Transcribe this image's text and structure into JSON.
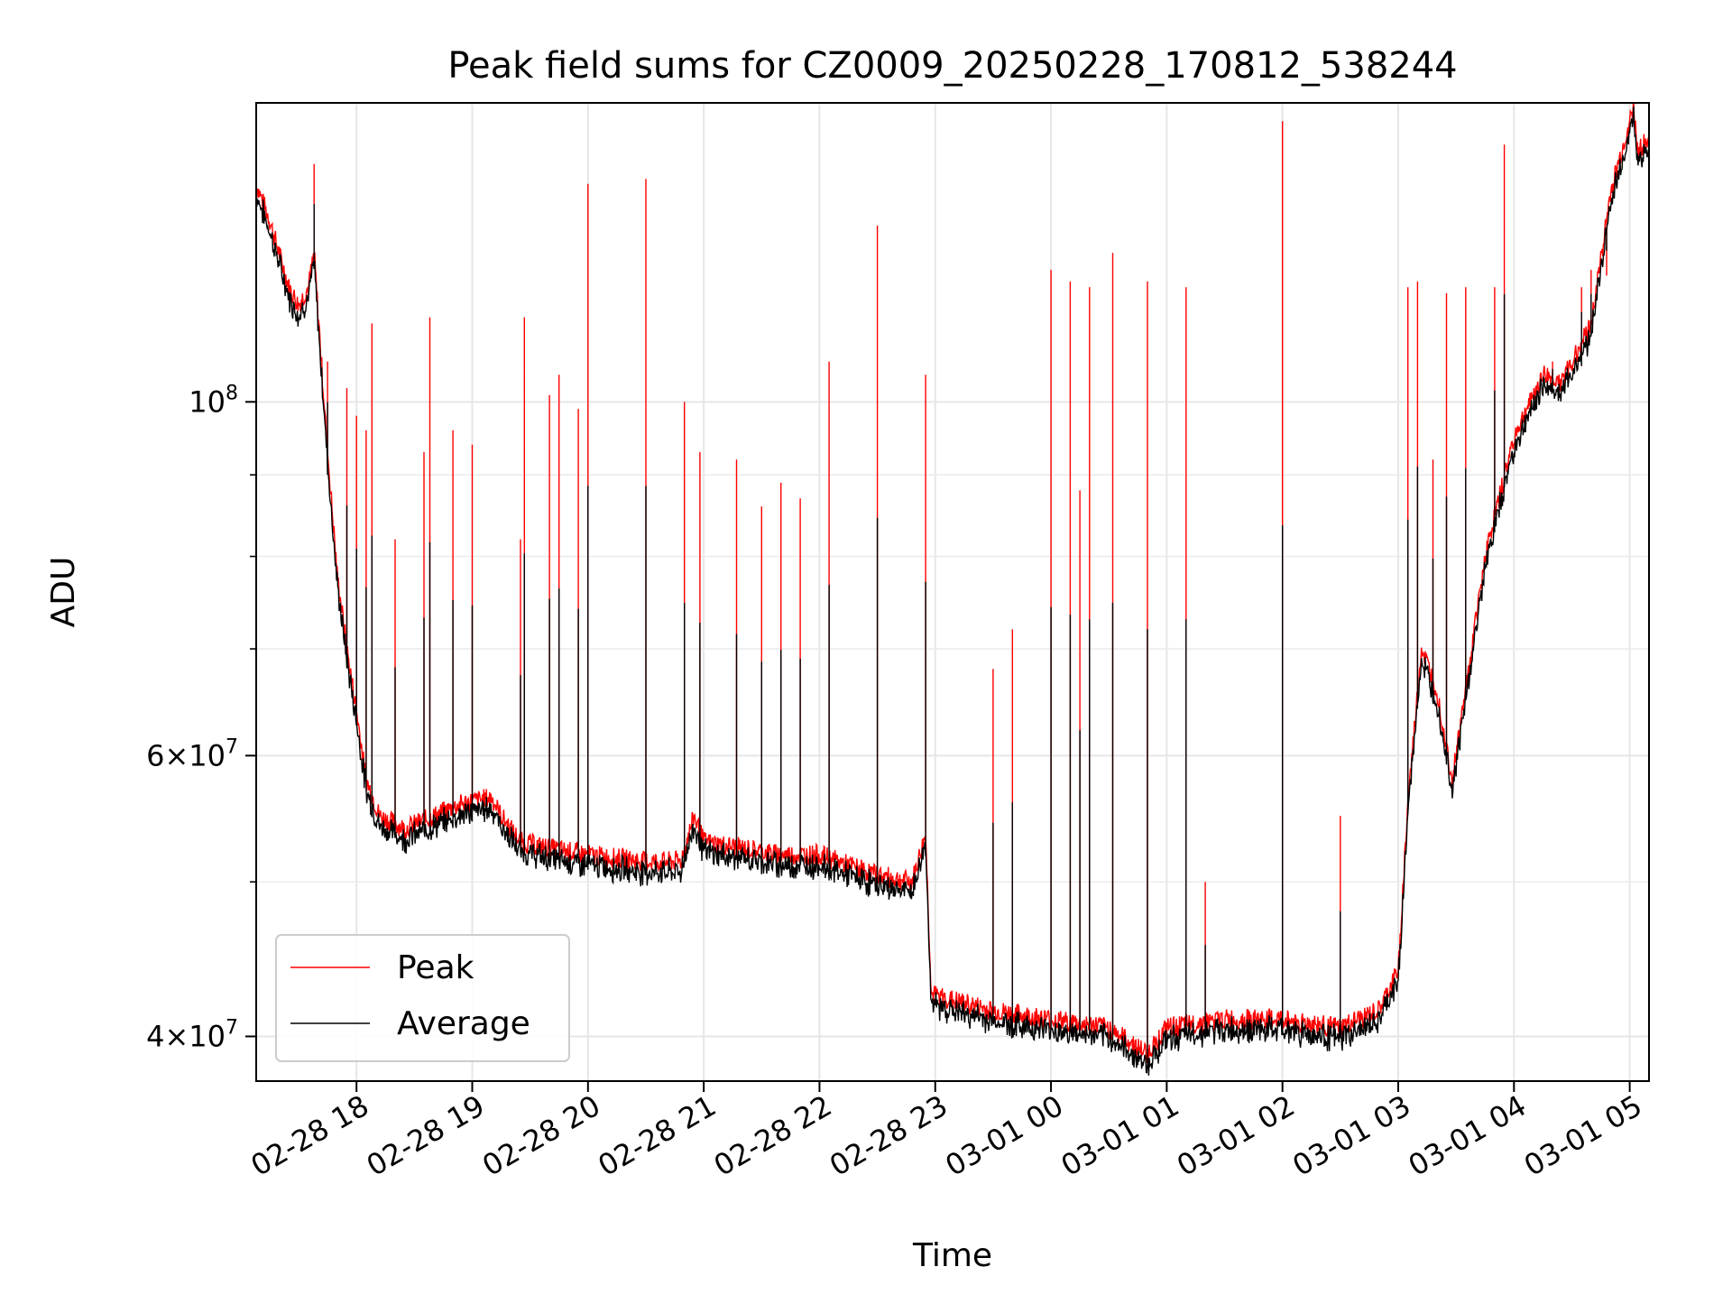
{
  "chart_data": {
    "type": "line",
    "title": "Peak field sums for CZ0009_20250228_170812_538244",
    "xlabel": "Time",
    "ylabel": "ADU",
    "y_scale": "log",
    "ylim": [
      37500000,
      154000000
    ],
    "x_axis": {
      "type": "datetime",
      "range": [
        "2025-02-28 17:08",
        "2025-03-01 05:10"
      ],
      "ticks": [
        "2025-02-28 18:00",
        "2025-02-28 19:00",
        "2025-02-28 20:00",
        "2025-02-28 21:00",
        "2025-02-28 22:00",
        "2025-02-28 23:00",
        "2025-03-01 00:00",
        "2025-03-01 01:00",
        "2025-03-01 02:00",
        "2025-03-01 03:00",
        "2025-03-01 04:00",
        "2025-03-01 05:00"
      ],
      "tick_labels": [
        "02-28 18",
        "02-28 19",
        "02-28 20",
        "02-28 21",
        "02-28 22",
        "02-28 23",
        "03-01 00",
        "03-01 01",
        "03-01 02",
        "03-01 03",
        "03-01 04",
        "03-01 05"
      ]
    },
    "y_axis": {
      "major_ticks": [
        {
          "value": 40000000,
          "mantissa": "4",
          "exponent": "7"
        },
        {
          "value": 60000000,
          "mantissa": "6",
          "exponent": "7"
        },
        {
          "value": 100000000,
          "mantissa": "",
          "exponent": "8"
        }
      ],
      "minor_gridlines": [
        50000000,
        70000000,
        80000000,
        90000000
      ]
    },
    "grid": true,
    "legend_position": "bottom-left",
    "series": [
      {
        "name": "Peak",
        "color": "#ff0000",
        "baseline": [
          [
            "2025-02-28 17:08",
            137000000
          ],
          [
            "2025-02-28 17:15",
            130000000
          ],
          [
            "2025-02-28 17:25",
            118000000
          ],
          [
            "2025-02-28 17:30",
            115000000
          ],
          [
            "2025-02-28 17:35",
            118000000
          ],
          [
            "2025-02-28 17:38",
            124000000
          ],
          [
            "2025-02-28 17:45",
            93000000
          ],
          [
            "2025-02-28 17:50",
            78000000
          ],
          [
            "2025-02-28 17:55",
            70000000
          ],
          [
            "2025-02-28 18:00",
            64000000
          ],
          [
            "2025-02-28 18:05",
            58000000
          ],
          [
            "2025-02-28 18:12",
            55000000
          ],
          [
            "2025-02-28 18:25",
            54000000
          ],
          [
            "2025-02-28 18:40",
            55000000
          ],
          [
            "2025-02-28 18:55",
            56000000
          ],
          [
            "2025-02-28 19:10",
            56500000
          ],
          [
            "2025-02-28 19:15",
            55000000
          ],
          [
            "2025-02-28 19:25",
            53000000
          ],
          [
            "2025-02-28 19:40",
            52500000
          ],
          [
            "2025-02-28 20:00",
            52000000
          ],
          [
            "2025-02-28 20:30",
            51500000
          ],
          [
            "2025-02-28 20:48",
            51500000
          ],
          [
            "2025-02-28 20:55",
            55000000
          ],
          [
            "2025-02-28 21:00",
            53000000
          ],
          [
            "2025-02-28 21:20",
            52500000
          ],
          [
            "2025-02-28 21:40",
            52000000
          ],
          [
            "2025-02-28 22:00",
            52000000
          ],
          [
            "2025-02-28 22:30",
            50500000
          ],
          [
            "2025-02-28 22:48",
            50000000
          ],
          [
            "2025-02-28 22:55",
            53500000
          ],
          [
            "2025-02-28 22:58",
            42500000
          ],
          [
            "2025-02-28 23:30",
            41500000
          ],
          [
            "2025-03-01 00:00",
            41000000
          ],
          [
            "2025-03-01 00:30",
            40500000
          ],
          [
            "2025-03-01 00:50",
            39000000
          ],
          [
            "2025-03-01 01:00",
            40500000
          ],
          [
            "2025-03-01 01:30",
            41000000
          ],
          [
            "2025-03-01 02:00",
            41000000
          ],
          [
            "2025-03-01 02:30",
            40500000
          ],
          [
            "2025-03-01 02:50",
            41500000
          ],
          [
            "2025-03-01 03:00",
            44000000
          ],
          [
            "2025-03-01 03:05",
            56000000
          ],
          [
            "2025-03-01 03:12",
            70000000
          ],
          [
            "2025-03-01 03:20",
            66000000
          ],
          [
            "2025-03-01 03:28",
            58000000
          ],
          [
            "2025-03-01 03:35",
            66000000
          ],
          [
            "2025-03-01 03:45",
            80000000
          ],
          [
            "2025-03-01 04:00",
            95000000
          ],
          [
            "2025-03-01 04:15",
            104000000
          ],
          [
            "2025-03-01 04:25",
            103000000
          ],
          [
            "2025-03-01 04:40",
            112000000
          ],
          [
            "2025-03-01 04:50",
            135000000
          ],
          [
            "2025-03-01 05:02",
            153000000
          ],
          [
            "2025-03-01 05:04",
            144000000
          ],
          [
            "2025-03-01 05:10",
            146000000
          ]
        ],
        "spikes": [
          [
            "2025-02-28 17:38",
            141000000
          ],
          [
            "2025-02-28 17:45",
            106000000
          ],
          [
            "2025-02-28 17:55",
            102000000
          ],
          [
            "2025-02-28 18:00",
            98000000
          ],
          [
            "2025-02-28 18:05",
            96000000
          ],
          [
            "2025-02-28 18:08",
            112000000
          ],
          [
            "2025-02-28 18:20",
            82000000
          ],
          [
            "2025-02-28 18:35",
            93000000
          ],
          [
            "2025-02-28 18:38",
            113000000
          ],
          [
            "2025-02-28 18:50",
            96000000
          ],
          [
            "2025-02-28 19:00",
            94000000
          ],
          [
            "2025-02-28 19:25",
            82000000
          ],
          [
            "2025-02-28 19:27",
            113000000
          ],
          [
            "2025-02-28 19:40",
            101000000
          ],
          [
            "2025-02-28 19:45",
            104000000
          ],
          [
            "2025-02-28 19:55",
            99000000
          ],
          [
            "2025-02-28 20:00",
            137000000
          ],
          [
            "2025-02-28 20:30",
            138000000
          ],
          [
            "2025-02-28 20:50",
            100000000
          ],
          [
            "2025-02-28 20:58",
            93000000
          ],
          [
            "2025-02-28 21:17",
            92000000
          ],
          [
            "2025-02-28 21:30",
            86000000
          ],
          [
            "2025-02-28 21:40",
            89000000
          ],
          [
            "2025-02-28 21:50",
            87000000
          ],
          [
            "2025-02-28 22:05",
            106000000
          ],
          [
            "2025-02-28 22:30",
            129000000
          ],
          [
            "2025-02-28 22:55",
            104000000
          ],
          [
            "2025-02-28 23:30",
            68000000
          ],
          [
            "2025-02-28 23:40",
            72000000
          ],
          [
            "2025-03-01 00:00",
            121000000
          ],
          [
            "2025-03-01 00:10",
            119000000
          ],
          [
            "2025-03-01 00:15",
            88000000
          ],
          [
            "2025-03-01 00:20",
            118000000
          ],
          [
            "2025-03-01 00:32",
            124000000
          ],
          [
            "2025-03-01 00:50",
            119000000
          ],
          [
            "2025-03-01 01:10",
            118000000
          ],
          [
            "2025-03-01 01:20",
            50000000
          ],
          [
            "2025-03-01 02:00",
            150000000
          ],
          [
            "2025-03-01 02:30",
            55000000
          ],
          [
            "2025-03-01 03:05",
            118000000
          ],
          [
            "2025-03-01 03:10",
            119000000
          ],
          [
            "2025-03-01 03:18",
            92000000
          ],
          [
            "2025-03-01 03:25",
            117000000
          ],
          [
            "2025-03-01 03:35",
            118000000
          ],
          [
            "2025-03-01 03:50",
            118000000
          ],
          [
            "2025-03-01 03:55",
            145000000
          ],
          [
            "2025-03-01 04:20",
            106000000
          ],
          [
            "2025-03-01 04:35",
            118000000
          ],
          [
            "2025-03-01 04:40",
            121000000
          ],
          [
            "2025-03-01 04:48",
            120000000
          ]
        ]
      },
      {
        "name": "Average",
        "color": "#000000",
        "relative_to_peak": 0.985
      }
    ]
  }
}
